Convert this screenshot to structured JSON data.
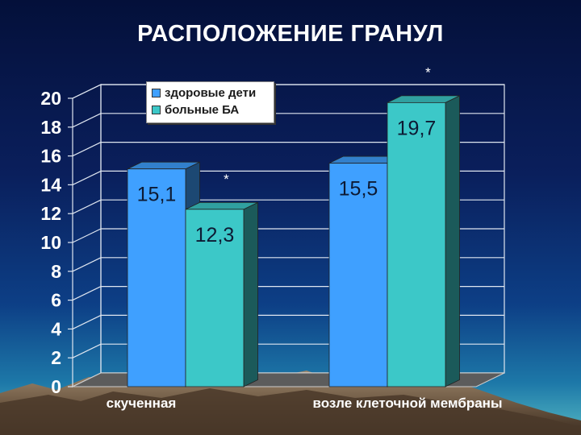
{
  "slide": {
    "title": "РАСПОЛОЖЕНИЕ ГРАНУЛ"
  },
  "colors": {
    "series_1": "#3fa0ff",
    "series_2": "#3cc8c8",
    "grid": "#dfe6f0",
    "text": "#ffffff",
    "label_text": "#0d1a33"
  },
  "chart_data": {
    "type": "bar",
    "categories": [
      "скученная",
      "возле клеточной мембраны"
    ],
    "series": [
      {
        "name": "здоровые дети",
        "values": [
          15.1,
          15.5
        ]
      },
      {
        "name": "больные БА",
        "values": [
          12.3,
          19.7
        ]
      }
    ],
    "data_labels": [
      [
        "15,1",
        "15,5"
      ],
      [
        "12,3",
        "19,7"
      ]
    ],
    "annotations": [
      {
        "text": "*",
        "category": 0,
        "series": 1
      },
      {
        "text": "*",
        "category": 1,
        "series": 1
      }
    ],
    "yticks": [
      "0",
      "2",
      "4",
      "6",
      "8",
      "10",
      "12",
      "14",
      "16",
      "18",
      "20"
    ],
    "ylim": [
      0,
      20
    ],
    "grid": true,
    "legend_position": "top-left",
    "xlabel": "",
    "ylabel": ""
  }
}
